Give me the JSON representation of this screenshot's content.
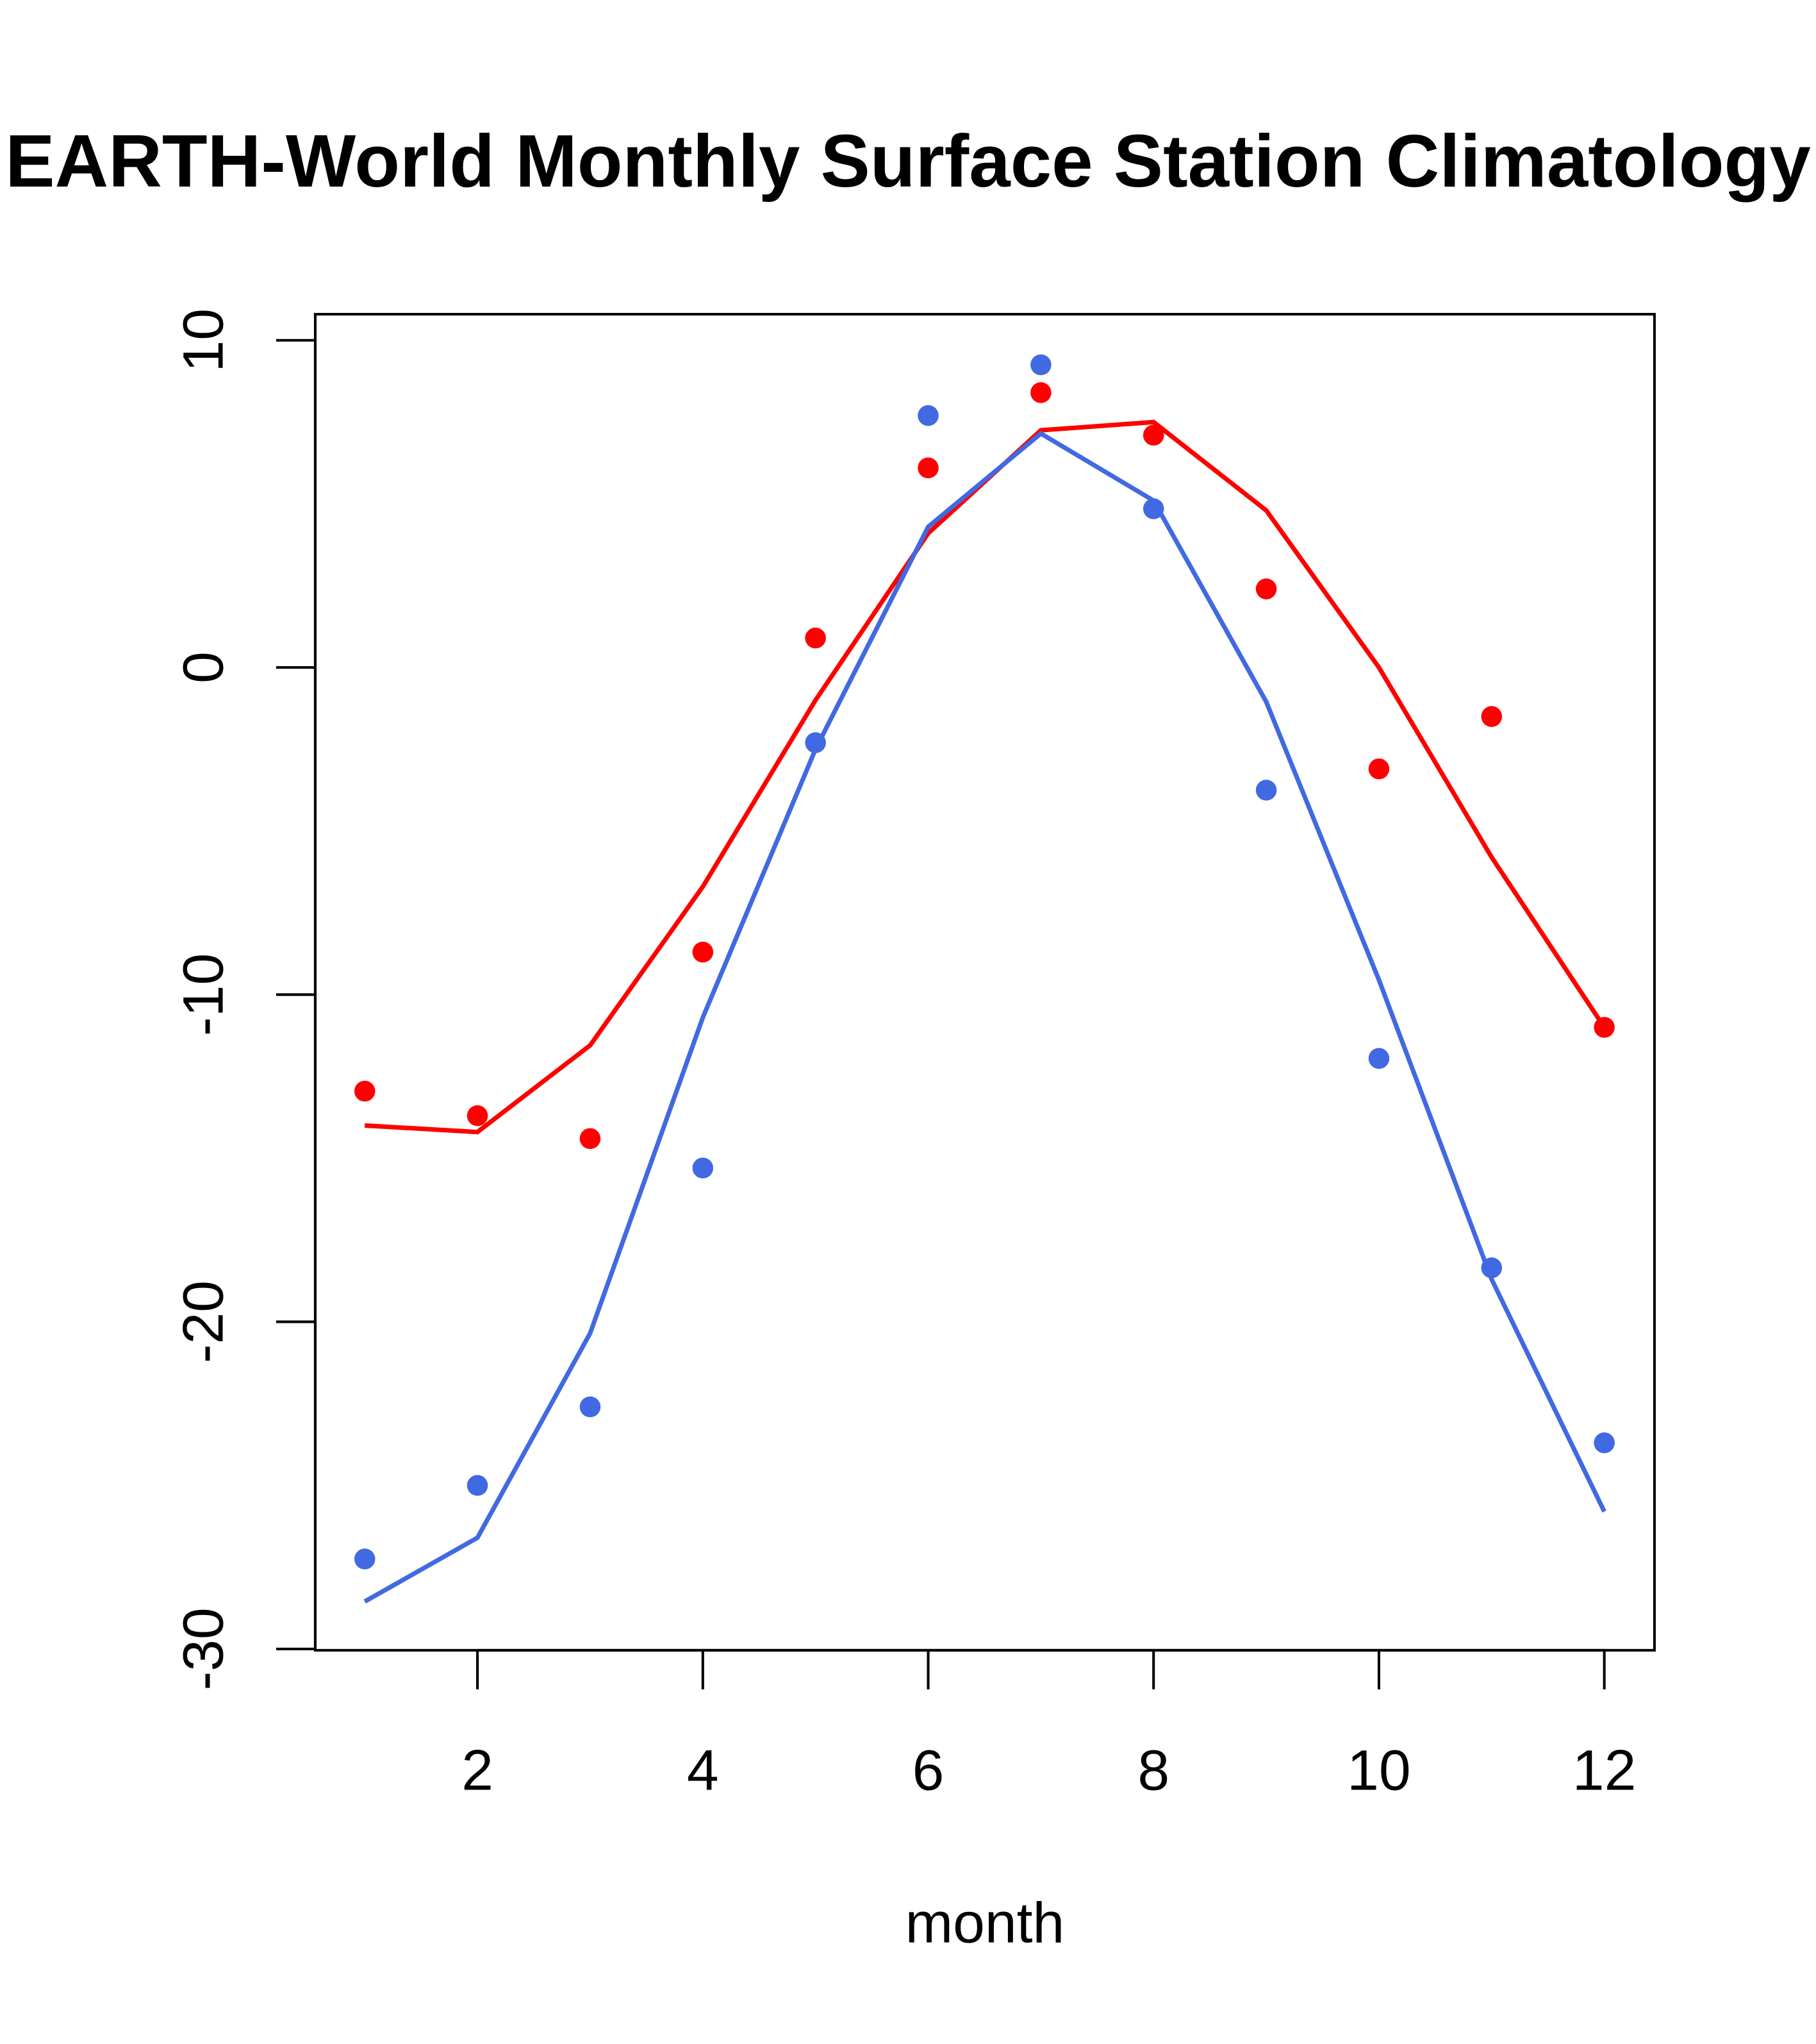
{
  "chart_data": {
    "type": "scatter",
    "title": "EARTH-World Monthly Surface Station Climatology",
    "xlabel": "month",
    "ylabel": "",
    "xlim": [
      0.56,
      12.44
    ],
    "ylim": [
      -30,
      10
    ],
    "x_ticks": [
      2,
      4,
      6,
      8,
      10,
      12
    ],
    "x_tick_labels": [
      "2",
      "4",
      "6",
      "8",
      "10",
      "12"
    ],
    "y_ticks": [
      -30,
      -20,
      -10,
      0,
      10
    ],
    "y_tick_labels": [
      "-30",
      "-20",
      "-10",
      "0",
      "10"
    ],
    "grid": false,
    "x": [
      1,
      2,
      3,
      4,
      5,
      6,
      7,
      8,
      9,
      10,
      11,
      12
    ],
    "series": [
      {
        "name": "red points",
        "kind": "points",
        "color": "#ff0000",
        "values": [
          -12.95,
          -13.7,
          -14.4,
          -8.7,
          0.9,
          6.1,
          8.4,
          7.1,
          2.4,
          -3.1,
          -1.5,
          -11.0
        ]
      },
      {
        "name": "red line",
        "kind": "line",
        "color": "#ff0000",
        "values": [
          -14.0,
          -14.2,
          -11.55,
          -6.7,
          -1.0,
          4.1,
          7.25,
          7.5,
          4.8,
          0.0,
          -5.8,
          -11.0
        ]
      },
      {
        "name": "blue points",
        "kind": "points",
        "color": "#4169e1",
        "values": [
          -27.25,
          -25.0,
          -22.6,
          -15.3,
          -2.3,
          7.7,
          9.25,
          4.85,
          -3.75,
          -11.95,
          -18.35,
          -23.7
        ]
      },
      {
        "name": "blue line",
        "kind": "line",
        "color": "#4169e1",
        "values": [
          -28.55,
          -26.6,
          -20.35,
          -10.7,
          -2.5,
          4.3,
          7.15,
          5.1,
          -1.05,
          -9.55,
          -18.7,
          -25.8
        ]
      }
    ]
  }
}
